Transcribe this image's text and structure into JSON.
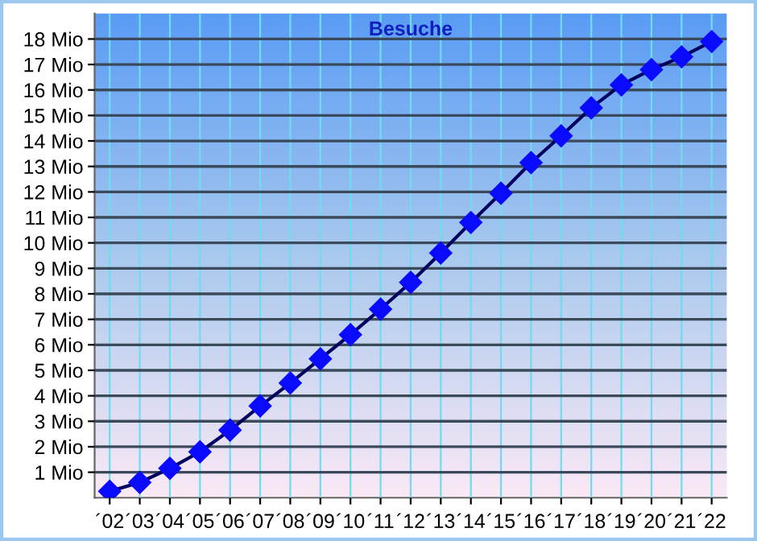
{
  "chart_data": {
    "type": "line",
    "title": "Besuche",
    "categories": [
      "´02",
      "´03",
      "´04",
      "´05",
      "´06",
      "´07",
      "´08",
      "´09",
      "´10",
      "´11",
      "´12",
      "´13",
      "´14",
      "´15",
      "´16",
      "´17",
      "´18",
      "´19",
      "´20",
      "´21",
      "´22"
    ],
    "series": [
      {
        "color": "#0a0aff",
        "values": [
          0.25,
          0.6,
          1.15,
          1.8,
          2.65,
          3.6,
          4.5,
          5.45,
          6.4,
          7.4,
          8.45,
          9.6,
          10.8,
          11.95,
          13.15,
          14.2,
          15.3,
          16.2,
          16.8,
          17.3,
          17.9
        ]
      }
    ],
    "ylim": [
      0,
      19
    ],
    "yticks": [
      {
        "value": 1,
        "label": "1 Mio"
      },
      {
        "value": 2,
        "label": "2 Mio"
      },
      {
        "value": 3,
        "label": "3 Mio"
      },
      {
        "value": 4,
        "label": "4 Mio"
      },
      {
        "value": 5,
        "label": "5 Mio"
      },
      {
        "value": 6,
        "label": "6 Mio"
      },
      {
        "value": 7,
        "label": "7 Mio"
      },
      {
        "value": 8,
        "label": "8 Mio"
      },
      {
        "value": 9,
        "label": "9 Mio"
      },
      {
        "value": 10,
        "label": "10 Mio"
      },
      {
        "value": 11,
        "label": "11 Mio"
      },
      {
        "value": 12,
        "label": "12 Mio"
      },
      {
        "value": 13,
        "label": "13 Mio"
      },
      {
        "value": 14,
        "label": "14 Mio"
      },
      {
        "value": 15,
        "label": "15 Mio"
      },
      {
        "value": 16,
        "label": "16 Mio"
      },
      {
        "value": 17,
        "label": "17 Mio"
      },
      {
        "value": 18,
        "label": "18 Mio"
      }
    ],
    "grid": true,
    "marker": "diamond",
    "line_style": "solid"
  }
}
